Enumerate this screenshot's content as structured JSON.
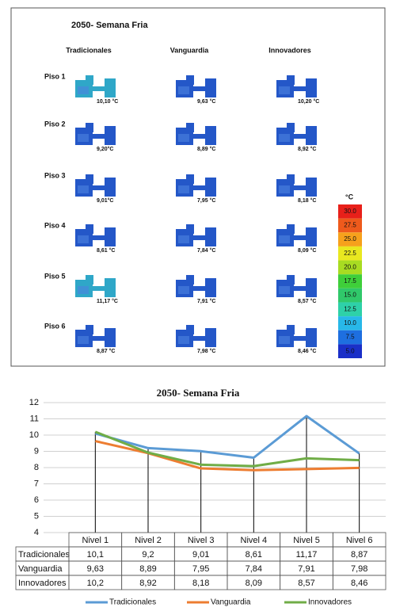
{
  "thermal_panel": {
    "title": "2050- Semana Fria",
    "columns": [
      "Tradicionales",
      "Vanguardia",
      "Innovadores"
    ],
    "rows": [
      {
        "label": "Piso 1",
        "temps": [
          "10,10 °C",
          "9,63 °C",
          "10,20 °C"
        ]
      },
      {
        "label": "Piso 2",
        "temps": [
          "9,20°C",
          "8,89 °C",
          "8,92 °C"
        ]
      },
      {
        "label": "Piso 3",
        "temps": [
          "9,01°C",
          "7,95 °C",
          "8,18 °C"
        ]
      },
      {
        "label": "Piso 4",
        "temps": [
          "8,61 °C",
          "7,84 °C",
          "8,09 °C"
        ]
      },
      {
        "label": "Piso 5",
        "temps": [
          "11,17 °C",
          "7,91 °C",
          "8,57 °C"
        ]
      },
      {
        "label": "Piso 6",
        "temps": [
          "8,87 °C",
          "7,98 °C",
          "8,46 °C"
        ]
      }
    ],
    "colorbar": {
      "unit": "°C",
      "labels": [
        "30.0",
        "27.5",
        "25.0",
        "22.5",
        "20.0",
        "17.5",
        "15.0",
        "12.5",
        "10.0",
        "7.5",
        "5.0"
      ],
      "colors": [
        "#e8201a",
        "#ee5a1c",
        "#f7a11c",
        "#e9e820",
        "#a8dc22",
        "#3fcf3a",
        "#30c86a",
        "#2ed1a8",
        "#28b8e8",
        "#1e6fe0",
        "#1a2fc8"
      ]
    }
  },
  "chart_data": {
    "type": "line",
    "title": "2050- Semana Fria",
    "categories": [
      "Nivel 1",
      "Nivel 2",
      "Nivel 3",
      "Nivel 4",
      "Nivel 5",
      "Nivel 6"
    ],
    "series": [
      {
        "name": "Tradicionales",
        "color": "#5b9bd5",
        "values": [
          10.1,
          9.2,
          9.01,
          8.61,
          11.17,
          8.87
        ],
        "value_labels": [
          "10,1",
          "9,2",
          "9,01",
          "8,61",
          "11,17",
          "8,87"
        ]
      },
      {
        "name": "Vanguardia",
        "color": "#ed7d31",
        "values": [
          9.63,
          8.89,
          7.95,
          7.84,
          7.91,
          7.98
        ],
        "value_labels": [
          "9,63",
          "8,89",
          "7,95",
          "7,84",
          "7,91",
          "7,98"
        ]
      },
      {
        "name": "Innovadores",
        "color": "#70ad47",
        "values": [
          10.2,
          8.92,
          8.18,
          8.09,
          8.57,
          8.46
        ],
        "value_labels": [
          "10,2",
          "8,92",
          "8,18",
          "8,09",
          "8,57",
          "8,46"
        ]
      }
    ],
    "ylim": [
      4,
      12
    ],
    "yticks": [
      4,
      5,
      6,
      7,
      8,
      9,
      10,
      11,
      12
    ],
    "grid": true
  }
}
